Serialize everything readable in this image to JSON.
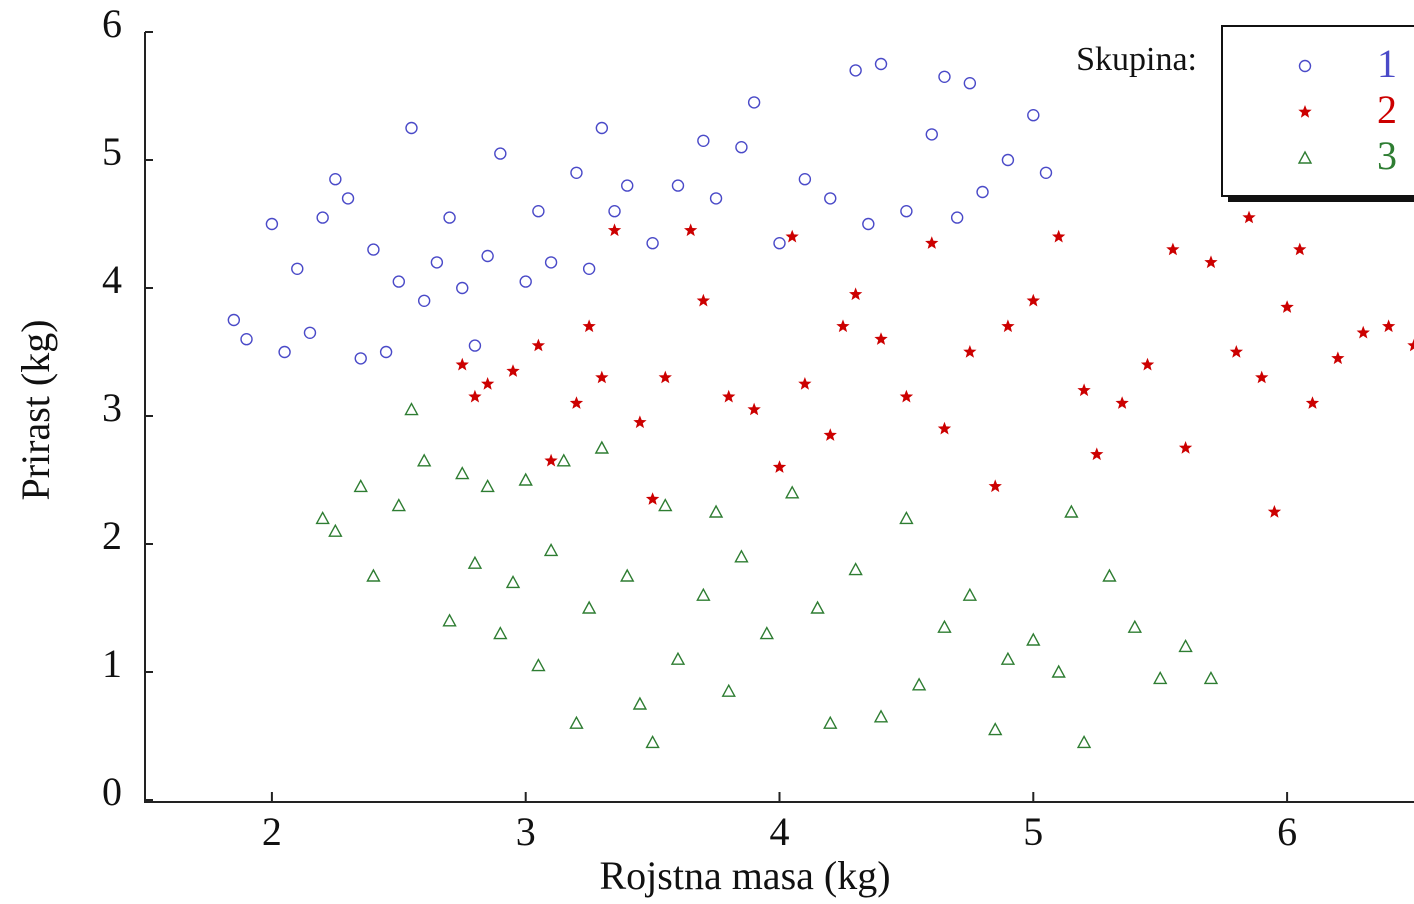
{
  "chart_data": {
    "type": "scatter",
    "x_label": "Rojstna masa (kg)",
    "y_label": "Prirast (kg)",
    "legend_title": "Skupina:",
    "legend_position": "upper right",
    "xlim": [
      1.5,
      6.5
    ],
    "xticks": [
      2,
      3,
      4,
      5,
      6
    ],
    "ylim": [
      0,
      6
    ],
    "yticks": [
      0,
      1,
      2,
      3,
      4,
      5,
      6
    ],
    "series": [
      {
        "name": "1",
        "color": "#4a4ac8",
        "marker": "circle",
        "x": [
          1.85,
          1.9,
          2.0,
          2.05,
          2.1,
          2.15,
          2.2,
          2.25,
          2.3,
          2.35,
          2.4,
          2.45,
          2.5,
          2.55,
          2.6,
          2.65,
          2.7,
          2.75,
          2.8,
          2.85,
          2.9,
          3.0,
          3.05,
          3.1,
          3.2,
          3.25,
          3.3,
          3.35,
          3.4,
          3.5,
          3.6,
          3.7,
          3.75,
          3.85,
          3.9,
          4.0,
          4.1,
          4.2,
          4.3,
          4.35,
          4.4,
          4.5,
          4.6,
          4.65,
          4.7,
          4.75,
          4.8,
          4.9,
          5.0,
          5.05
        ],
        "values": [
          3.75,
          3.6,
          4.5,
          3.5,
          4.15,
          3.65,
          4.55,
          4.85,
          4.7,
          3.45,
          4.3,
          3.5,
          4.05,
          5.25,
          3.9,
          4.2,
          4.55,
          4.0,
          3.55,
          4.25,
          5.05,
          4.05,
          4.6,
          4.2,
          4.9,
          4.15,
          5.25,
          4.6,
          4.8,
          4.35,
          4.8,
          5.15,
          4.7,
          5.1,
          5.45,
          4.35,
          4.85,
          4.7,
          5.7,
          4.5,
          5.75,
          4.6,
          5.2,
          5.65,
          4.55,
          5.6,
          4.75,
          5.0,
          5.35,
          4.9
        ]
      },
      {
        "name": "2",
        "color": "#cc0000",
        "marker": "star",
        "x": [
          2.75,
          2.8,
          2.85,
          2.95,
          3.05,
          3.1,
          3.2,
          3.25,
          3.3,
          3.35,
          3.45,
          3.5,
          3.55,
          3.65,
          3.7,
          3.8,
          3.9,
          4.0,
          4.05,
          4.1,
          4.2,
          4.25,
          4.3,
          4.4,
          4.5,
          4.6,
          4.65,
          4.75,
          4.85,
          4.9,
          5.0,
          5.1,
          5.2,
          5.25,
          5.35,
          5.45,
          5.55,
          5.6,
          5.7,
          5.8,
          5.85,
          5.9,
          5.95,
          6.0,
          6.05,
          6.1,
          6.2,
          6.3,
          6.4,
          6.5
        ],
        "values": [
          3.4,
          3.15,
          3.25,
          3.35,
          3.55,
          2.65,
          3.1,
          3.7,
          3.3,
          4.45,
          2.95,
          2.35,
          3.3,
          4.45,
          3.9,
          3.15,
          3.05,
          2.6,
          4.4,
          3.25,
          2.85,
          3.7,
          3.95,
          3.6,
          3.15,
          4.35,
          2.9,
          3.5,
          2.45,
          3.7,
          3.9,
          4.4,
          3.2,
          2.7,
          3.1,
          3.4,
          4.3,
          2.75,
          4.2,
          3.5,
          4.55,
          3.3,
          2.25,
          3.85,
          4.3,
          3.1,
          3.45,
          3.65,
          3.7,
          3.55
        ]
      },
      {
        "name": "3",
        "color": "#2e7d32",
        "marker": "triangle",
        "x": [
          2.2,
          2.25,
          2.35,
          2.4,
          2.5,
          2.55,
          2.6,
          2.7,
          2.75,
          2.8,
          2.85,
          2.9,
          2.95,
          3.0,
          3.05,
          3.1,
          3.15,
          3.2,
          3.25,
          3.3,
          3.4,
          3.45,
          3.5,
          3.55,
          3.6,
          3.7,
          3.75,
          3.8,
          3.85,
          3.95,
          4.05,
          4.15,
          4.2,
          4.3,
          4.4,
          4.5,
          4.55,
          4.65,
          4.75,
          4.85,
          4.9,
          5.0,
          5.1,
          5.15,
          5.2,
          5.3,
          5.4,
          5.5,
          5.6,
          5.7
        ],
        "values": [
          2.2,
          2.1,
          2.45,
          1.75,
          2.3,
          3.05,
          2.65,
          1.4,
          2.55,
          1.85,
          2.45,
          1.3,
          1.7,
          2.5,
          1.05,
          1.95,
          2.65,
          0.6,
          1.5,
          2.75,
          1.75,
          0.75,
          0.45,
          2.3,
          1.1,
          1.6,
          2.25,
          0.85,
          1.9,
          1.3,
          2.4,
          1.5,
          0.6,
          1.8,
          0.65,
          2.2,
          0.9,
          1.35,
          1.6,
          0.55,
          1.1,
          1.25,
          1.0,
          2.25,
          0.45,
          1.75,
          1.35,
          0.95,
          1.2,
          0.95
        ]
      }
    ]
  }
}
